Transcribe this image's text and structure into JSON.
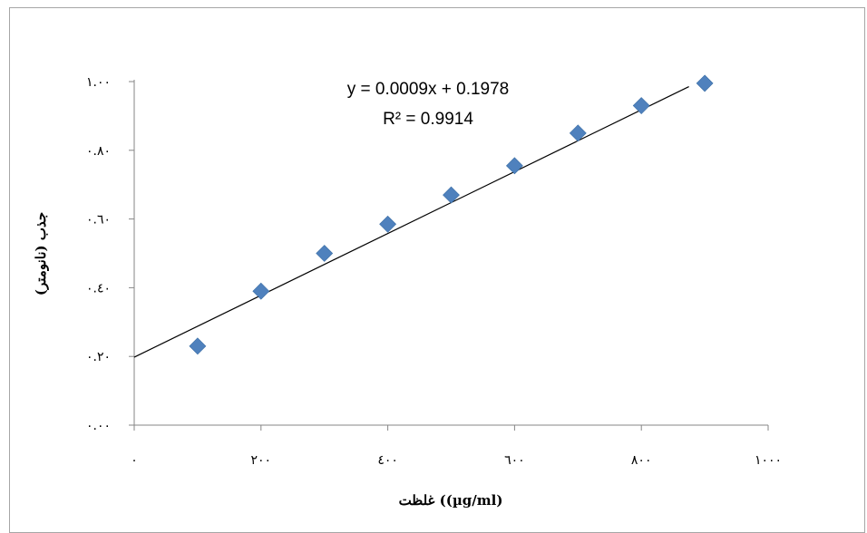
{
  "chart_data": {
    "type": "scatter",
    "title": "",
    "xlabel": "غلظت ((µg/ml)",
    "ylabel": "جذب (نانومتر)",
    "xlim": [
      0,
      1000
    ],
    "ylim": [
      0.0,
      1.0
    ],
    "x_ticks": [
      0,
      200,
      400,
      600,
      800,
      1000
    ],
    "x_tick_labels": [
      "٠",
      "٢٠٠",
      "٤٠٠",
      "٦٠٠",
      "٨٠٠",
      "١٠٠٠"
    ],
    "y_ticks": [
      0.0,
      0.2,
      0.4,
      0.6,
      0.8,
      1.0
    ],
    "y_tick_labels": [
      "٠.٠٠",
      "٠.٢٠",
      "٠.٤٠",
      "٠.٦٠",
      "٠.٨٠",
      "١.٠٠"
    ],
    "grid": false,
    "legend": "none",
    "marker_color": "#4f81bd",
    "trendline_color": "#000000",
    "x": [
      100,
      200,
      300,
      400,
      500,
      600,
      700,
      800,
      900
    ],
    "y": [
      0.23,
      0.39,
      0.5,
      0.585,
      0.67,
      0.755,
      0.85,
      0.93,
      0.995
    ],
    "trendline": {
      "slope": 0.0009,
      "intercept": 0.1978,
      "x_range": [
        0,
        875
      ]
    },
    "equation_label": "y = 0.0009x + 0.1978",
    "r2_label": "R² = 0.9914"
  }
}
